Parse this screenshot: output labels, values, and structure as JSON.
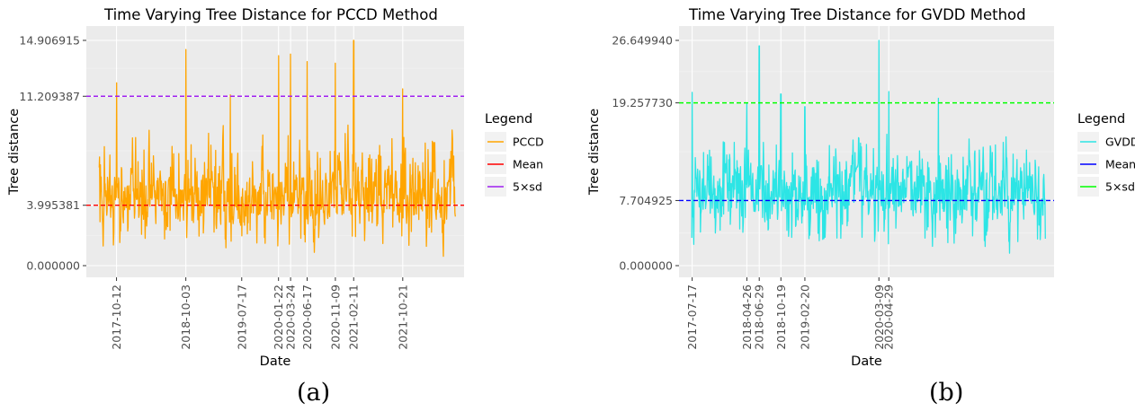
{
  "chart_data": [
    {
      "type": "line",
      "title": "Time Varying Tree Distance for PCCD Method",
      "xlabel": "Date",
      "ylabel": "Tree distance",
      "caption": "(a)",
      "x_range": [
        "2017-05-10",
        "2022-09-01"
      ],
      "ylim": [
        0,
        14.906915
      ],
      "y_ticks": [
        "0.000000",
        "3.995381",
        "11.209387",
        "14.906915"
      ],
      "x_ticks": [
        "2017-10-12",
        "2018-10-03",
        "2019-07-17",
        "2020-01-22",
        "2020-03-24",
        "2020-06-17",
        "2020-11-09",
        "2021-02-11",
        "2021-10-21"
      ],
      "grid": true,
      "legend_title": "Legend",
      "legend_position": "right",
      "series_color": "#FFA500",
      "series": [
        {
          "name": "PCCD",
          "kind": "line",
          "color": "#FFA500",
          "x_start": "2017-07-15",
          "x_end": "2022-07-18",
          "y_mean": 3.995381,
          "y_min": 0.0,
          "y_max": 14.906915,
          "peaks": [
            [
              "2017-10-12",
              12.1
            ],
            [
              "2018-10-03",
              14.3
            ],
            [
              "2019-05-20",
              11.3
            ],
            [
              "2020-01-22",
              13.9
            ],
            [
              "2020-03-24",
              14.0
            ],
            [
              "2020-06-17",
              13.5
            ],
            [
              "2020-11-09",
              13.4
            ],
            [
              "2021-02-11",
              14.906915
            ],
            [
              "2021-10-21",
              11.7
            ]
          ]
        },
        {
          "name": "Mean",
          "kind": "hline",
          "color": "#FF0000",
          "value": 3.995381
        },
        {
          "name": "5×sd",
          "kind": "hline",
          "color": "#A020F0",
          "value": 11.209387
        }
      ]
    },
    {
      "type": "line",
      "title": "Time Varying Tree Distance for GVDD Method",
      "xlabel": "Date",
      "ylabel": "Tree distance",
      "caption": "(b)",
      "x_range": [
        "2017-05-10",
        "2022-09-01"
      ],
      "ylim": [
        0,
        26.64994
      ],
      "y_ticks": [
        "0.000000",
        "7.704925",
        "19.257730",
        "26.649940"
      ],
      "x_ticks": [
        "2017-07-17",
        "2018-04-26",
        "2018-06-29",
        "2018-10-19",
        "2019-02-20",
        "2020-03-09",
        "2020-04-29"
      ],
      "grid": true,
      "legend_title": "Legend",
      "legend_position": "right",
      "series_color": "#2CE5E5",
      "series": [
        {
          "name": "GVDD",
          "kind": "line",
          "color": "#2CE5E5",
          "x_start": "2017-07-15",
          "x_end": "2022-07-18",
          "y_mean": 7.704925,
          "y_min": 0.0,
          "y_max": 26.64994,
          "peaks": [
            [
              "2017-07-17",
              20.5
            ],
            [
              "2018-04-26",
              19.2
            ],
            [
              "2018-06-29",
              26.0
            ],
            [
              "2018-10-19",
              20.3
            ],
            [
              "2019-02-20",
              18.8
            ],
            [
              "2020-03-09",
              26.64994
            ],
            [
              "2020-04-29",
              20.6
            ],
            [
              "2021-01-10",
              19.8
            ]
          ]
        },
        {
          "name": "Mean",
          "kind": "hline",
          "color": "#0000FF",
          "value": 7.704925
        },
        {
          "name": "5×sd",
          "kind": "hline",
          "color": "#00FF00",
          "value": 19.25773
        }
      ]
    }
  ]
}
